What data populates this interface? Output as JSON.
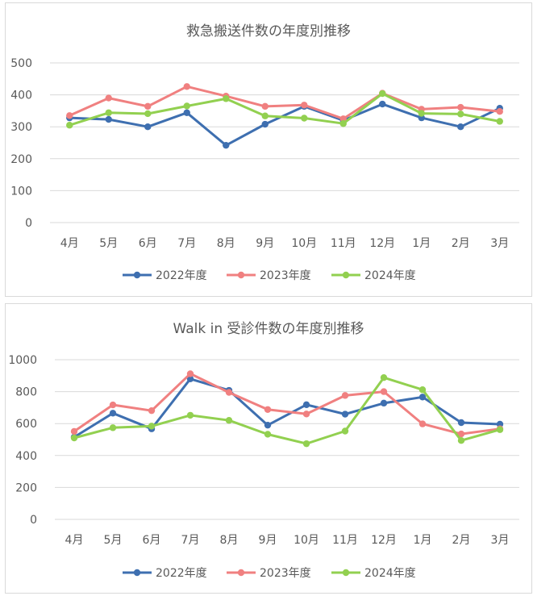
{
  "chart_data": [
    {
      "type": "line",
      "title": "救急搬送件数の年度別推移",
      "categories": [
        "4月",
        "5月",
        "6月",
        "7月",
        "8月",
        "9月",
        "10月",
        "11月",
        "12月",
        "1月",
        "2月",
        "3月"
      ],
      "ylim": [
        0,
        500
      ],
      "yticks": [
        "0",
        "100",
        "200",
        "300",
        "400",
        "500"
      ],
      "grid": true,
      "legend": "bottom",
      "series": [
        {
          "name": "2022年度",
          "color": "#3e6fb0",
          "values": [
            328,
            323,
            300,
            344,
            242,
            308,
            364,
            320,
            371,
            328,
            300,
            358
          ]
        },
        {
          "name": "2023年度",
          "color": "#f08080",
          "values": [
            335,
            390,
            364,
            426,
            396,
            364,
            368,
            325,
            405,
            355,
            361,
            348
          ]
        },
        {
          "name": "2024年度",
          "color": "#92d050",
          "values": [
            305,
            344,
            341,
            365,
            388,
            334,
            327,
            310,
            404,
            342,
            340,
            317
          ]
        }
      ]
    },
    {
      "type": "line",
      "title": "Walk in 受診件数の年度別推移",
      "categories": [
        "4月",
        "5月",
        "6月",
        "7月",
        "8月",
        "9月",
        "10月",
        "11月",
        "12月",
        "1月",
        "2月",
        "3月"
      ],
      "ylim": [
        0,
        1000
      ],
      "yticks": [
        "0",
        "200",
        "400",
        "600",
        "800",
        "1000"
      ],
      "grid": true,
      "legend": "bottom",
      "series": [
        {
          "name": "2022年度",
          "color": "#3e6fb0",
          "values": [
            515,
            665,
            567,
            880,
            808,
            590,
            718,
            659,
            728,
            766,
            606,
            596
          ]
        },
        {
          "name": "2023年度",
          "color": "#f08080",
          "values": [
            551,
            717,
            681,
            912,
            795,
            688,
            660,
            776,
            800,
            598,
            535,
            567
          ]
        },
        {
          "name": "2024年度",
          "color": "#92d050",
          "values": [
            510,
            574,
            584,
            652,
            620,
            533,
            474,
            553,
            888,
            812,
            494,
            562
          ]
        }
      ]
    }
  ]
}
